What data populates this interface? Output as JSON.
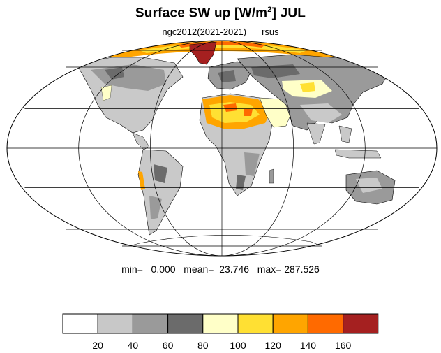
{
  "title": {
    "main_prefix": "Surface SW up [W/m",
    "main_sup": "2",
    "main_suffix": "]  JUL"
  },
  "subtitle": {
    "run": "ngc2012(2021-2021)",
    "variable": "rsus"
  },
  "stats": {
    "text": "min=   0.000   mean=  23.746   max= 287.526"
  },
  "map_data": {
    "projection": "mollweide",
    "graticule": {
      "lon_step": 60,
      "lat_step": 30
    },
    "fill_colors": {
      "ocean": "#ffffff",
      "land_light": "#c9c9c9",
      "land_mid": "#9a9a9a",
      "land_dark": "#6b6b6b",
      "desert_pale": "#ffffc8",
      "desert_yellow": "#ffe033",
      "desert_orange": "#ffa500",
      "high_orange": "#ff6a00",
      "ice_red": "#a52020"
    }
  },
  "colorbar": {
    "levels": [
      20,
      40,
      60,
      80,
      100,
      120,
      140,
      160
    ],
    "labels": [
      "20",
      "40",
      "60",
      "80",
      "100",
      "120",
      "140",
      "160"
    ],
    "colors": [
      "#ffffff",
      "#c8c8c8",
      "#9a9a9a",
      "#6b6b6b",
      "#ffffc8",
      "#ffe033",
      "#ffa500",
      "#ff6a00",
      "#a52020"
    ]
  }
}
